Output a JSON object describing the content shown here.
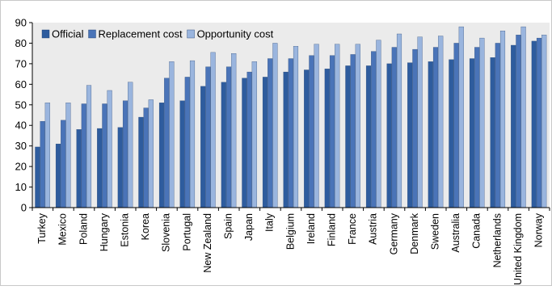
{
  "chart_data": {
    "type": "bar",
    "title": "",
    "xlabel": "",
    "ylabel": "",
    "ylim": [
      0,
      90
    ],
    "yticks": [
      0,
      10,
      20,
      30,
      40,
      50,
      60,
      70,
      80,
      90
    ],
    "grid": false,
    "legend_position": "top-left",
    "categories": [
      "Turkey",
      "Mexico",
      "Poland",
      "Hungary",
      "Estonia",
      "Korea",
      "Slovenia",
      "Portugal",
      "New Zealand",
      "Spain",
      "Japan",
      "Italy",
      "Belgium",
      "Ireland",
      "Finland",
      "France",
      "Austria",
      "Germany",
      "Denmark",
      "Sweden",
      "Australia",
      "Canada",
      "Netherlands",
      "United Kingdom",
      "Norway"
    ],
    "series": [
      {
        "name": "Official",
        "color": "#2E5C9E",
        "values": [
          29.5,
          31,
          38,
          38.5,
          39,
          44,
          51,
          52,
          59,
          61,
          63,
          63.5,
          66,
          67,
          67.5,
          69,
          69,
          70,
          70.5,
          71,
          72,
          72.5,
          73,
          79,
          81
        ]
      },
      {
        "name": "Replacement cost",
        "color": "#4A74B8",
        "values": [
          42,
          42.5,
          50.5,
          50.5,
          52,
          48.5,
          63,
          63.5,
          68.5,
          68.5,
          66,
          72.5,
          72.5,
          74,
          74,
          74.5,
          76,
          78,
          77,
          78,
          80,
          78,
          80,
          84,
          82.5
        ]
      },
      {
        "name": "Opportunity cost",
        "color": "#9AB5DE",
        "values": [
          51,
          51,
          59.5,
          57,
          61,
          52.5,
          71,
          71.5,
          75.5,
          75,
          71,
          80,
          78.5,
          79.5,
          79.5,
          79.5,
          81.5,
          84.5,
          83,
          83.5,
          88,
          82.5,
          86,
          88,
          84
        ]
      }
    ]
  }
}
